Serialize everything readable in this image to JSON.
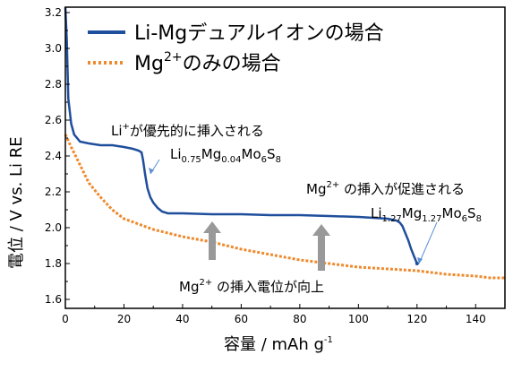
{
  "chart_data": {
    "type": "line",
    "xlabel": "容量 / mAh g",
    "xlabel_sup": "-1",
    "ylabel": "電位 / V vs. Li RE",
    "xlim": [
      0,
      150
    ],
    "ylim": [
      1.55,
      3.23
    ],
    "x_ticks": [
      0,
      20,
      40,
      60,
      80,
      100,
      120,
      140
    ],
    "y_ticks": [
      1.6,
      1.8,
      2.0,
      2.2,
      2.4,
      2.6,
      2.8,
      3.0,
      3.2
    ],
    "legend_position": "top-right",
    "series": [
      {
        "name": "Li-Mgデュアルイオンの場合",
        "color": "#1f4e9c",
        "style": "solid",
        "points": [
          [
            0,
            3.23
          ],
          [
            0.5,
            3.05
          ],
          [
            1,
            2.72
          ],
          [
            2,
            2.58
          ],
          [
            3,
            2.52
          ],
          [
            5,
            2.48
          ],
          [
            8,
            2.47
          ],
          [
            12,
            2.46
          ],
          [
            16,
            2.46
          ],
          [
            20,
            2.45
          ],
          [
            23,
            2.44
          ],
          [
            25,
            2.43
          ],
          [
            26,
            2.42
          ],
          [
            26.5,
            2.38
          ],
          [
            27.2,
            2.3
          ],
          [
            28,
            2.22
          ],
          [
            29,
            2.17
          ],
          [
            30,
            2.14
          ],
          [
            31.5,
            2.11
          ],
          [
            33,
            2.09
          ],
          [
            35,
            2.08
          ],
          [
            40,
            2.08
          ],
          [
            50,
            2.075
          ],
          [
            60,
            2.075
          ],
          [
            70,
            2.07
          ],
          [
            80,
            2.07
          ],
          [
            90,
            2.065
          ],
          [
            100,
            2.06
          ],
          [
            105,
            2.055
          ],
          [
            110,
            2.05
          ],
          [
            113,
            2.04
          ],
          [
            114,
            2.03
          ],
          [
            115,
            2.01
          ],
          [
            116,
            1.97
          ],
          [
            117,
            1.93
          ],
          [
            118,
            1.88
          ],
          [
            119,
            1.84
          ],
          [
            120,
            1.8
          ]
        ]
      },
      {
        "name": "Mgのみの場合",
        "name_sup": "2+",
        "color": "#ee8a2e",
        "style": "dashed",
        "points": [
          [
            0,
            2.52
          ],
          [
            2,
            2.45
          ],
          [
            5,
            2.35
          ],
          [
            8,
            2.25
          ],
          [
            12,
            2.17
          ],
          [
            16,
            2.1
          ],
          [
            20,
            2.05
          ],
          [
            25,
            2.02
          ],
          [
            30,
            1.99
          ],
          [
            40,
            1.95
          ],
          [
            50,
            1.92
          ],
          [
            60,
            1.88
          ],
          [
            70,
            1.85
          ],
          [
            80,
            1.82
          ],
          [
            90,
            1.8
          ],
          [
            100,
            1.78
          ],
          [
            110,
            1.77
          ],
          [
            120,
            1.76
          ],
          [
            130,
            1.74
          ],
          [
            140,
            1.73
          ],
          [
            145,
            1.72
          ],
          [
            150,
            1.72
          ]
        ]
      }
    ],
    "annotations": [
      {
        "text_a": "Li",
        "text_a_sup": "+",
        "text_b": "が優先的に挿入される"
      },
      {
        "formula": [
          [
            "Li",
            ""
          ],
          [
            "0.75",
            "sub"
          ],
          [
            "Mg",
            ""
          ],
          [
            "0.04",
            "sub"
          ],
          [
            "Mo",
            ""
          ],
          [
            "6",
            "sub"
          ],
          [
            "S",
            ""
          ],
          [
            "8",
            "sub"
          ]
        ]
      },
      {
        "text_a": "Mg",
        "text_a_sup": "2+",
        "text_b": " の挿入が促進される"
      },
      {
        "formula": [
          [
            "Li",
            ""
          ],
          [
            "1.27",
            "sub"
          ],
          [
            "Mg",
            ""
          ],
          [
            "1.27",
            "sub"
          ],
          [
            "Mo",
            ""
          ],
          [
            "6",
            "sub"
          ],
          [
            "S",
            ""
          ],
          [
            "8",
            "sub"
          ]
        ]
      },
      {
        "text_a": "Mg",
        "text_a_sup": "2+",
        "text_b": " の挿入電位が向上"
      }
    ]
  }
}
